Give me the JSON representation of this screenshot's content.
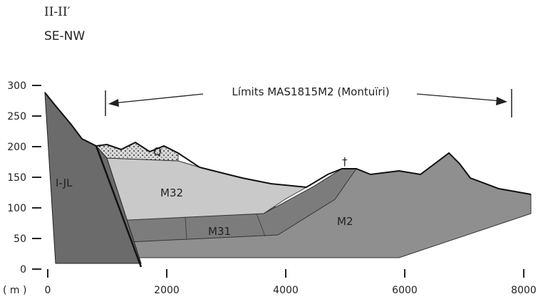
{
  "header": {
    "title": "II-II′",
    "subtitle": "SE-NW"
  },
  "boundary_label": "Límits MAS1815M2 (Montuïri)",
  "units": {
    "label": "( m )",
    "label_top": "†"
  },
  "axes": {
    "x_range": [
      0,
      8000
    ],
    "x_ticks": [
      0,
      2000,
      4000,
      6000,
      8000
    ],
    "y_range": [
      0,
      300
    ],
    "y_ticks": [
      0,
      50,
      100,
      150,
      200,
      250,
      300
    ]
  },
  "units_layers": {
    "q": "Q",
    "ijl": "I-JL",
    "m32": "M32",
    "m31": "M31",
    "m2": "M2"
  }
}
